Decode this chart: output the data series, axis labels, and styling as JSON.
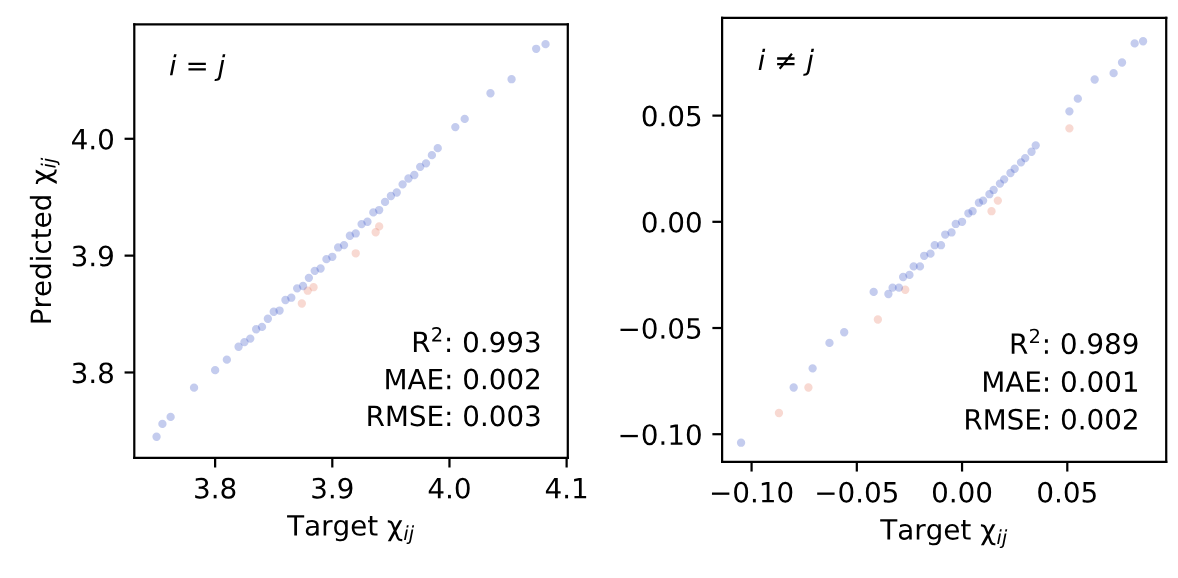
{
  "chart_data": [
    {
      "type": "scatter",
      "xlabel": "Target χ$_{ij}$",
      "ylabel": "Predicted χ$_{ij}$",
      "xlim": [
        3.731,
        4.101
      ],
      "ylim": [
        3.727,
        4.098
      ],
      "xticks": [
        {
          "value": 3.8,
          "label": "3.8"
        },
        {
          "value": 3.9,
          "label": "3.9"
        },
        {
          "value": 4.0,
          "label": "4.0"
        },
        {
          "value": 4.1,
          "label": "4.1"
        }
      ],
      "yticks": [
        {
          "value": 3.8,
          "label": "3.8"
        },
        {
          "value": 3.9,
          "label": "3.9"
        },
        {
          "value": 4.0,
          "label": "4.0"
        }
      ],
      "grid": false,
      "marker": "circle",
      "annotations": [
        "i = j",
        "R$^{2}$: 0.993",
        "MAE: 0.002",
        "RMSE: 0.003"
      ],
      "series": [
        {
          "color": "#e8806a",
          "x": [
            3.874,
            3.879,
            3.884,
            3.92,
            3.937,
            3.94
          ],
          "values": [
            3.859,
            3.87,
            3.873,
            3.902,
            3.92,
            3.925
          ]
        },
        {
          "color": "#3b55c8",
          "x": [
            3.75,
            3.755,
            3.762,
            3.782,
            3.8,
            3.81,
            3.82,
            3.825,
            3.83,
            3.835,
            3.84,
            3.845,
            3.85,
            3.855,
            3.86,
            3.865,
            3.87,
            3.875,
            3.88,
            3.885,
            3.89,
            3.895,
            3.9,
            3.905,
            3.91,
            3.915,
            3.92,
            3.925,
            3.93,
            3.935,
            3.94,
            3.945,
            3.95,
            3.955,
            3.96,
            3.965,
            3.97,
            3.975,
            3.98,
            3.985,
            3.99,
            4.005,
            4.013,
            4.035,
            4.053,
            4.074,
            4.082
          ],
          "values": [
            3.745,
            3.756,
            3.762,
            3.787,
            3.802,
            3.811,
            3.822,
            3.826,
            3.829,
            3.837,
            3.839,
            3.846,
            3.852,
            3.853,
            3.862,
            3.864,
            3.872,
            3.874,
            3.881,
            3.887,
            3.889,
            3.897,
            3.899,
            3.907,
            3.909,
            3.917,
            3.919,
            3.927,
            3.929,
            3.937,
            3.939,
            3.946,
            3.951,
            3.954,
            3.961,
            3.966,
            3.969,
            3.976,
            3.979,
            3.986,
            3.992,
            4.01,
            4.017,
            4.039,
            4.051,
            4.077,
            4.081
          ]
        }
      ]
    },
    {
      "type": "scatter",
      "xlabel": "Target χ$_{ij}$",
      "xlim": [
        -0.114,
        0.097
      ],
      "ylim": [
        -0.113,
        0.096
      ],
      "xticks": [
        {
          "value": -0.1,
          "label": "−0.10"
        },
        {
          "value": -0.05,
          "label": "−0.05"
        },
        {
          "value": 0,
          "label": "0.00"
        },
        {
          "value": 0.05,
          "label": "0.05"
        }
      ],
      "yticks": [
        {
          "value": -0.1,
          "label": "−0.10"
        },
        {
          "value": -0.05,
          "label": "−0.05"
        },
        {
          "value": 0,
          "label": "0.00"
        },
        {
          "value": 0.05,
          "label": "0.05"
        }
      ],
      "grid": false,
      "marker": "circle",
      "annotations": [
        "i ≠ j",
        "R$^{2}$: 0.989",
        "MAE: 0.001",
        "RMSE: 0.002"
      ],
      "series": [
        {
          "color": "#e8806a",
          "x": [
            -0.087,
            -0.073,
            -0.04,
            -0.027,
            0.014,
            0.017,
            0.051
          ],
          "values": [
            -0.09,
            -0.078,
            -0.046,
            -0.032,
            0.005,
            0.01,
            0.044
          ]
        },
        {
          "color": "#3b55c8",
          "x": [
            -0.105,
            -0.08,
            -0.071,
            -0.063,
            -0.056,
            -0.042,
            -0.035,
            -0.033,
            -0.03,
            -0.028,
            -0.025,
            -0.023,
            -0.02,
            -0.018,
            -0.015,
            -0.013,
            -0.01,
            -0.008,
            -0.005,
            -0.003,
            0.0,
            0.003,
            0.005,
            0.008,
            0.01,
            0.013,
            0.015,
            0.018,
            0.02,
            0.023,
            0.025,
            0.028,
            0.03,
            0.033,
            0.035,
            0.051,
            0.055,
            0.063,
            0.072,
            0.076,
            0.082,
            0.086
          ],
          "values": [
            -0.104,
            -0.078,
            -0.069,
            -0.057,
            -0.052,
            -0.033,
            -0.034,
            -0.031,
            -0.031,
            -0.026,
            -0.025,
            -0.021,
            -0.021,
            -0.016,
            -0.015,
            -0.011,
            -0.011,
            -0.006,
            -0.005,
            -0.001,
            0.0,
            0.004,
            0.005,
            0.009,
            0.01,
            0.013,
            0.015,
            0.018,
            0.02,
            0.023,
            0.025,
            0.028,
            0.03,
            0.033,
            0.036,
            0.052,
            0.058,
            0.067,
            0.07,
            0.075,
            0.084,
            0.085
          ]
        }
      ]
    }
  ]
}
